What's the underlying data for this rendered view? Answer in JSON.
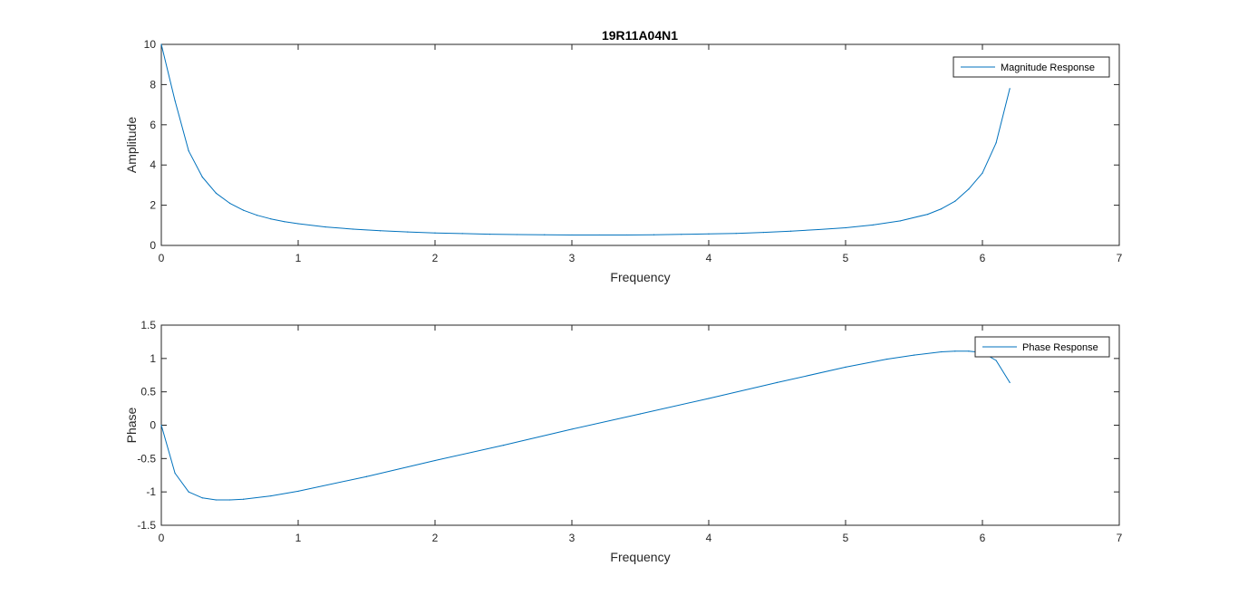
{
  "figure": {
    "title": "19R11A04N1",
    "background": "#ffffff",
    "axis_color": "#262626",
    "line_color": "#0072bd"
  },
  "chart_data": [
    {
      "type": "line",
      "title": "19R11A04N1",
      "xlabel": "Frequency",
      "ylabel": "Amplitude",
      "xlim": [
        0,
        7
      ],
      "ylim": [
        0,
        10
      ],
      "xticks": [
        0,
        1,
        2,
        3,
        4,
        5,
        6,
        7
      ],
      "yticks": [
        0,
        2,
        4,
        6,
        8,
        10
      ],
      "grid": false,
      "legend_position": "top-right",
      "series": [
        {
          "name": "Magnitude Response",
          "x": [
            0,
            0.1,
            0.2,
            0.3,
            0.4,
            0.5,
            0.6,
            0.7,
            0.8,
            0.9,
            1.0,
            1.2,
            1.4,
            1.6,
            1.8,
            2.0,
            2.2,
            2.4,
            2.6,
            2.8,
            3.0,
            3.2,
            3.4,
            3.6,
            3.8,
            4.0,
            4.2,
            4.4,
            4.6,
            4.8,
            5.0,
            5.2,
            5.4,
            5.6,
            5.7,
            5.8,
            5.9,
            6.0,
            6.1,
            6.2
          ],
          "y": [
            10.0,
            7.2,
            4.7,
            3.4,
            2.6,
            2.1,
            1.75,
            1.5,
            1.32,
            1.18,
            1.08,
            0.92,
            0.81,
            0.73,
            0.67,
            0.62,
            0.59,
            0.56,
            0.54,
            0.53,
            0.52,
            0.52,
            0.52,
            0.53,
            0.55,
            0.57,
            0.6,
            0.65,
            0.71,
            0.79,
            0.88,
            1.02,
            1.22,
            1.55,
            1.82,
            2.2,
            2.8,
            3.6,
            5.1,
            7.8
          ]
        }
      ]
    },
    {
      "type": "line",
      "title": "",
      "xlabel": "Frequency",
      "ylabel": "Phase",
      "xlim": [
        0,
        7
      ],
      "ylim": [
        -1.5,
        1.5
      ],
      "xticks": [
        0,
        1,
        2,
        3,
        4,
        5,
        6,
        7
      ],
      "yticks": [
        -1.5,
        -1,
        -0.5,
        0,
        0.5,
        1,
        1.5
      ],
      "grid": false,
      "legend_position": "top-right",
      "series": [
        {
          "name": "Phase Response",
          "x": [
            0,
            0.1,
            0.2,
            0.3,
            0.4,
            0.5,
            0.6,
            0.8,
            1.0,
            1.5,
            2.0,
            2.5,
            3.0,
            3.5,
            4.0,
            4.5,
            5.0,
            5.3,
            5.5,
            5.7,
            5.8,
            5.9,
            6.0,
            6.1,
            6.2
          ],
          "y": [
            0,
            -0.72,
            -1.0,
            -1.09,
            -1.12,
            -1.12,
            -1.11,
            -1.06,
            -0.99,
            -0.77,
            -0.53,
            -0.3,
            -0.06,
            0.17,
            0.4,
            0.64,
            0.87,
            0.99,
            1.05,
            1.1,
            1.11,
            1.11,
            1.09,
            0.97,
            0.64
          ]
        }
      ]
    }
  ]
}
